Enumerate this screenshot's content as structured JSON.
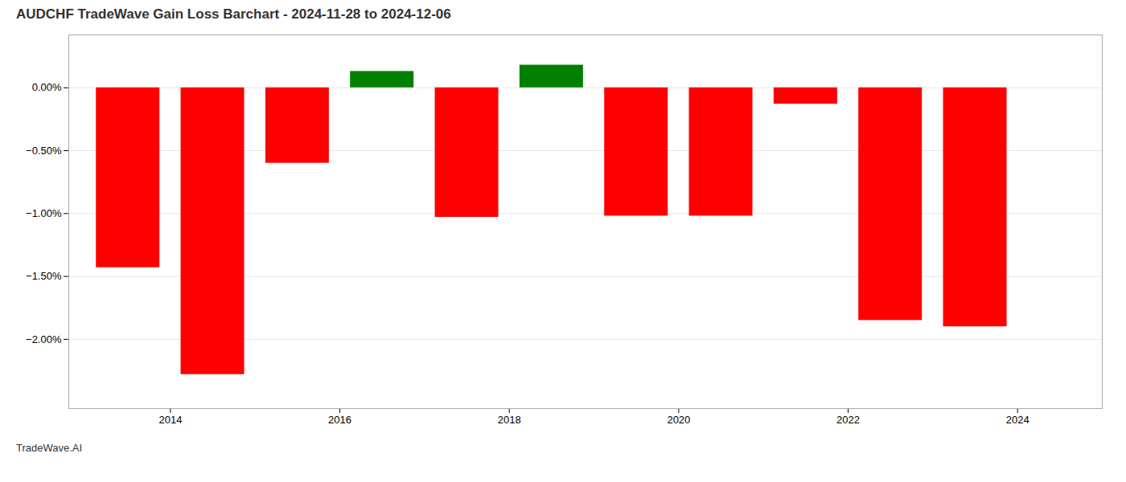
{
  "chart_data": {
    "type": "bar",
    "title": "AUDCHF TradeWave Gain Loss Barchart - 2024-11-28 to 2024-12-06",
    "annotations": [
      "TradeWave.AI"
    ],
    "x": [
      2013.5,
      2014.5,
      2015.5,
      2016.5,
      2017.5,
      2018.5,
      2019.5,
      2020.5,
      2021.5,
      2022.5,
      2023.5
    ],
    "values": [
      -1.43,
      -2.28,
      -0.6,
      0.13,
      -1.03,
      0.18,
      -1.02,
      -1.02,
      -0.13,
      -1.85,
      -1.9
    ],
    "colors": [
      "#ff0000",
      "#ff0000",
      "#ff0000",
      "#008000",
      "#ff0000",
      "#008000",
      "#ff0000",
      "#ff0000",
      "#ff0000",
      "#ff0000",
      "#ff0000"
    ],
    "xlim": [
      2012.8,
      2025.0
    ],
    "xticks": [
      2014,
      2016,
      2018,
      2020,
      2022,
      2024
    ],
    "ylim": [
      -2.55,
      0.42
    ],
    "yticks": [
      {
        "value": 0.0,
        "label": "0.00%"
      },
      {
        "value": -0.5,
        "label": "−0.50%"
      },
      {
        "value": -1.0,
        "label": "−1.00%"
      },
      {
        "value": -1.5,
        "label": "−1.50%"
      },
      {
        "value": -2.0,
        "label": "−2.00%"
      }
    ],
    "grid": true
  }
}
